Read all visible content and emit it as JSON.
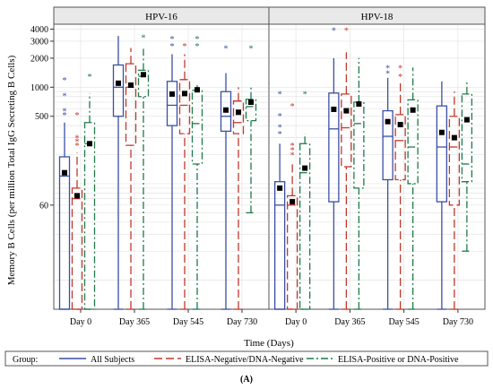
{
  "chart_data": {
    "type": "box",
    "panels": [
      "HPV-16",
      "HPV-18"
    ],
    "categories": [
      "Day 0",
      "Day 365",
      "Day 545",
      "Day 730"
    ],
    "ylabel": "Memory B Cells (per million Total IgG Secreting B Cells)",
    "xlabel": "Time (Days)",
    "yscale": "log",
    "ylim": [
      5,
      4500
    ],
    "yticks": [
      60,
      500,
      1000,
      2000,
      3000,
      4000
    ],
    "legend": {
      "title": "Group:",
      "position": "bottom",
      "items": [
        {
          "name": "All Subjects",
          "color": "#3a4fa3",
          "dash": "solid"
        },
        {
          "name": "ELISA-Negative/DNA-Negative",
          "color": "#c0392b",
          "dash": "long-dash"
        },
        {
          "name": "ELISA-Positive or DNA-Positive",
          "color": "#1e7a4a",
          "dash": "dash-dot"
        }
      ]
    },
    "caption": "(A)",
    "series": [
      {
        "name": "All Subjects",
        "boxes": {
          "HPV-16": [
            {
              "min": 5,
              "q1": 5,
              "median": 120,
              "q3": 190,
              "max": 430,
              "mean": 130,
              "outliers": [
                520,
                570,
                820,
                1200
              ]
            },
            {
              "min": 5,
              "q1": 500,
              "median": 1000,
              "q3": 1700,
              "max": 3400,
              "mean": 1100,
              "outliers": []
            },
            {
              "min": 5,
              "q1": 400,
              "median": 650,
              "q3": 1150,
              "max": 2200,
              "mean": 850,
              "outliers": [
                2700,
                3200
              ]
            },
            {
              "min": 5,
              "q1": 350,
              "median": 500,
              "q3": 900,
              "max": 1400,
              "mean": 580,
              "outliers": [
                2550
              ]
            }
          ],
          "HPV-18": [
            {
              "min": 5,
              "q1": 5,
              "median": 60,
              "q3": 105,
              "max": 260,
              "mean": 90,
              "outliers": [
                330,
                390,
                510,
                860
              ]
            },
            {
              "min": 5,
              "q1": 65,
              "median": 370,
              "q3": 870,
              "max": 2000,
              "mean": 590,
              "outliers": [
                3900
              ]
            },
            {
              "min": 5,
              "q1": 110,
              "median": 310,
              "q3": 570,
              "max": 1250,
              "mean": 440,
              "outliers": [
                1400,
                1600
              ]
            },
            {
              "min": 5,
              "q1": 65,
              "median": 240,
              "q3": 640,
              "max": 1150,
              "mean": 340,
              "outliers": []
            }
          ]
        }
      },
      {
        "name": "ELISA-Negative/DNA-Negative",
        "boxes": {
          "HPV-16": [
            {
              "min": 5,
              "q1": 5,
              "median": 70,
              "q3": 90,
              "max": 210,
              "mean": 75,
              "outliers": [
                250,
                275,
                300,
                520
              ]
            },
            {
              "min": 5,
              "q1": 250,
              "median": 1000,
              "q3": 1750,
              "max": 2550,
              "mean": 1050,
              "outliers": []
            },
            {
              "min": 5,
              "q1": 330,
              "median": 650,
              "q3": 1200,
              "max": 2200,
              "mean": 860,
              "outliers": [
                2700
              ]
            },
            {
              "min": 5,
              "q1": 330,
              "median": 430,
              "q3": 720,
              "max": 1000,
              "mean": 550,
              "outliers": []
            }
          ],
          "HPV-18": [
            {
              "min": 5,
              "q1": 5,
              "median": 60,
              "q3": 75,
              "max": 160,
              "mean": 65,
              "outliers": [
                200,
                225,
                250,
                640
              ]
            },
            {
              "min": 5,
              "q1": 150,
              "median": 380,
              "q3": 850,
              "max": 2300,
              "mean": 570,
              "outliers": [
                3900
              ]
            },
            {
              "min": 5,
              "q1": 110,
              "median": 280,
              "q3": 520,
              "max": 1150,
              "mean": 410,
              "outliers": [
                1300,
                1600
              ]
            },
            {
              "min": 5,
              "q1": 60,
              "median": 240,
              "q3": 500,
              "max": 900,
              "mean": 300,
              "outliers": []
            }
          ]
        }
      },
      {
        "name": "ELISA-Positive or DNA-Positive",
        "boxes": {
          "HPV-16": [
            {
              "min": 5,
              "q1": 5,
              "median": 260,
              "q3": 430,
              "max": 860,
              "mean": 260,
              "outliers": [
                1300
              ]
            },
            {
              "min": 5,
              "q1": 800,
              "median": 1300,
              "q3": 1500,
              "max": 2600,
              "mean": 1350,
              "outliers": [
                3300
              ]
            },
            {
              "min": 5,
              "q1": 160,
              "median": 420,
              "q3": 930,
              "max": 1050,
              "mean": 940,
              "outliers": [
                2700,
                3200
              ]
            },
            {
              "min": 50,
              "q1": 450,
              "median": 630,
              "q3": 750,
              "max": 1050,
              "mean": 700,
              "outliers": [
                2550
              ]
            }
          ],
          "HPV-18": [
            {
              "min": 5,
              "q1": 5,
              "median": 130,
              "q3": 260,
              "max": 330,
              "mean": 145,
              "outliers": [
                860
              ]
            },
            {
              "min": 5,
              "q1": 90,
              "median": 420,
              "q3": 700,
              "max": 2000,
              "mean": 670,
              "outliers": []
            },
            {
              "min": 5,
              "q1": 100,
              "median": 240,
              "q3": 740,
              "max": 1600,
              "mean": 580,
              "outliers": []
            },
            {
              "min": 20,
              "q1": 105,
              "median": 160,
              "q3": 850,
              "max": 1150,
              "mean": 460,
              "outliers": []
            }
          ]
        }
      }
    ]
  }
}
